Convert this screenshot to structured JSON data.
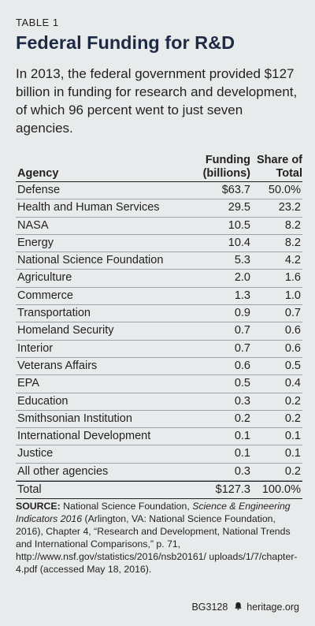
{
  "table_label": "TABLE 1",
  "title": "Federal Funding for R&D",
  "intro": "In 2013, the federal government provided $127 billion in funding for research and development, of which 96 percent went to just seven agencies.",
  "columns": {
    "agency": "Agency",
    "funding_line1": "Funding",
    "funding_line2": "(billions)",
    "share_line1": "Share of",
    "share_line2": "Total"
  },
  "rows": [
    {
      "agency": "Defense",
      "funding": "$63.7",
      "share": "50.0%"
    },
    {
      "agency": "Health and Human Services",
      "funding": "29.5",
      "share": "23.2"
    },
    {
      "agency": "NASA",
      "funding": "10.5",
      "share": "8.2"
    },
    {
      "agency": "Energy",
      "funding": "10.4",
      "share": "8.2"
    },
    {
      "agency": "National Science Foundation",
      "funding": "5.3",
      "share": "4.2"
    },
    {
      "agency": "Agriculture",
      "funding": "2.0",
      "share": "1.6"
    },
    {
      "agency": "Commerce",
      "funding": "1.3",
      "share": "1.0"
    },
    {
      "agency": "Transportation",
      "funding": "0.9",
      "share": "0.7"
    },
    {
      "agency": "Homeland Security",
      "funding": "0.7",
      "share": "0.6"
    },
    {
      "agency": "Interior",
      "funding": "0.7",
      "share": "0.6"
    },
    {
      "agency": "Veterans Affairs",
      "funding": "0.6",
      "share": "0.5"
    },
    {
      "agency": "EPA",
      "funding": "0.5",
      "share": "0.4"
    },
    {
      "agency": "Education",
      "funding": "0.3",
      "share": "0.2"
    },
    {
      "agency": "Smithsonian Institution",
      "funding": "0.2",
      "share": "0.2"
    },
    {
      "agency": "International Development",
      "funding": "0.1",
      "share": "0.1"
    },
    {
      "agency": "Justice",
      "funding": "0.1",
      "share": "0.1"
    },
    {
      "agency": "All other agencies",
      "funding": "0.3",
      "share": "0.2"
    }
  ],
  "total": {
    "agency": "Total",
    "funding": "$127.3",
    "share": "100.0%"
  },
  "source": {
    "label": "SOURCE:",
    "part1": " National Science Foundation, ",
    "italic": "Science & Engineering Indicators 2016",
    "part2": " (Arlington, VA: National Science Foundation, 2016), Chapter 4, “Research and Development, National Trends and International Comparisons,” p. 71, http://www.nsf.gov/statistics/2016/nsb20161/ uploads/1/7/chapter-4.pdf (accessed May 18, 2016)."
  },
  "footer": {
    "code": "BG3128",
    "icon": "bell-icon",
    "site": "heritage.org"
  }
}
